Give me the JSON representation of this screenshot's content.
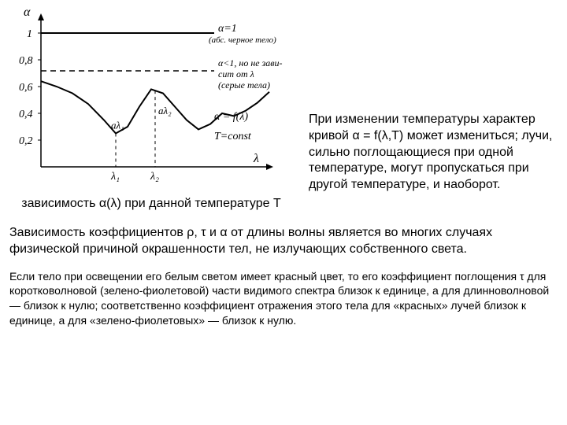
{
  "chart": {
    "type": "line",
    "y_axis_label": "α",
    "x_axis_label": "λ",
    "y_ticks": [
      "1",
      "0,8",
      "0,6",
      "0,4",
      "0,2"
    ],
    "annotations": {
      "alpha1": "α=1",
      "alpha1_sub": "(абс. черное тело)",
      "alpha_lt1": "α<1, но не зави-",
      "alpha_lt1_sub": "сит от λ",
      "alpha_lt1_sub2": "(серые тела)",
      "alpha_f": "α = f(λ)",
      "t_const": "T=const",
      "a_lambda1": "aλ₁",
      "a_lambda2": "aλ₂",
      "lambda1": "λ₁",
      "lambda2": "λ₂"
    },
    "colors": {
      "line": "#000000",
      "bg": "#ffffff"
    },
    "top_line_y": 1.0,
    "dashed_line_y": 0.72,
    "curve_points": [
      [
        0,
        64
      ],
      [
        20,
        60
      ],
      [
        40,
        55
      ],
      [
        60,
        47
      ],
      [
        80,
        35
      ],
      [
        95,
        25
      ],
      [
        110,
        30
      ],
      [
        125,
        45
      ],
      [
        140,
        58
      ],
      [
        155,
        55
      ],
      [
        170,
        45
      ],
      [
        185,
        35
      ],
      [
        200,
        28
      ],
      [
        215,
        32
      ],
      [
        230,
        40
      ],
      [
        245,
        38
      ],
      [
        260,
        42
      ],
      [
        275,
        48
      ],
      [
        290,
        56
      ]
    ],
    "lambda1_x": 95,
    "lambda2_x": 145
  },
  "caption": "зависимость  α(λ) при данной температуре T",
  "right_paragraph": "При изменении температуры характер кривой α = f(λ,T) может измениться; лучи, сильно поглощающиеся при одной температуре, могут пропускаться при другой температуре, и наоборот.",
  "para1": "Зависимость коэффициентов ρ, τ и α от длины волны является во многих случаях физической причиной окрашенности тел, не излучающих собственного света.",
  "para2": "Если тело при освещении его белым светом имеет красный цвет, то его коэффициент поглощения τ для коротковолновой (зелено-фиолетовой) части видимого спектра близок к единице, а для длинноволновой — близок к нулю; соответственно коэффициент отражения этого тела для «красных» лучей близок к единице, а для «зелено-фиолетовых» — близок к нулю."
}
